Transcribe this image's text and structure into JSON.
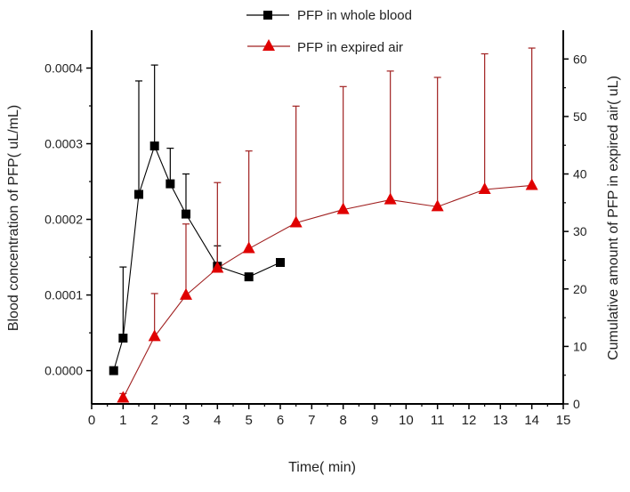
{
  "chart_data": {
    "type": "line",
    "xlabel": "Time( min)",
    "ylabel_left": "Blood concentration of PFP(   uL/mL)",
    "ylabel_right": "Cumulative amount of PFP in expired air(  uL)",
    "xlim": [
      0,
      15
    ],
    "ylim_left": [
      -4.4e-05,
      0.00045
    ],
    "ylim_right": [
      0,
      65
    ],
    "x_ticks": [
      "0",
      "1",
      "2",
      "3",
      "4",
      "5",
      "6",
      "7",
      "8",
      "9",
      "10",
      "11",
      "12",
      "13",
      "14",
      "15"
    ],
    "y_left_ticks": [
      "0.0000",
      "0.0001",
      "0.0002",
      "0.0003",
      "0.0004"
    ],
    "y_right_ticks": [
      "0",
      "10",
      "20",
      "30",
      "40",
      "50",
      "60"
    ],
    "grid": false,
    "legend_position": "top-center",
    "series": [
      {
        "name": "PFP in whole blood",
        "axis": "left",
        "color": "#000000",
        "marker": "square",
        "x": [
          0.7,
          1,
          1.5,
          2,
          2.5,
          3,
          4,
          5,
          6
        ],
        "y": [
          0.0,
          4.3e-05,
          0.000233,
          0.000297,
          0.000247,
          0.000207,
          0.000138,
          0.000124,
          0.000143
        ],
        "error_upper": [
          null,
          0.000137,
          0.000383,
          0.000404,
          0.000294,
          0.00026,
          0.000165,
          0.000128,
          null
        ]
      },
      {
        "name": "PFP in expired air",
        "axis": "right",
        "color": "#e00000",
        "line_color": "#a02020",
        "marker": "triangle",
        "x": [
          1,
          2,
          3,
          4,
          5,
          6.5,
          8,
          9.5,
          11,
          12.5,
          14
        ],
        "y": [
          1.0,
          11.7,
          18.9,
          23.6,
          27.0,
          31.5,
          33.8,
          35.5,
          34.3,
          37.3,
          38.0
        ],
        "error_upper": [
          1.8,
          19.2,
          31.3,
          38.5,
          44.0,
          51.8,
          55.2,
          57.9,
          56.8,
          60.9,
          61.9
        ]
      }
    ]
  }
}
